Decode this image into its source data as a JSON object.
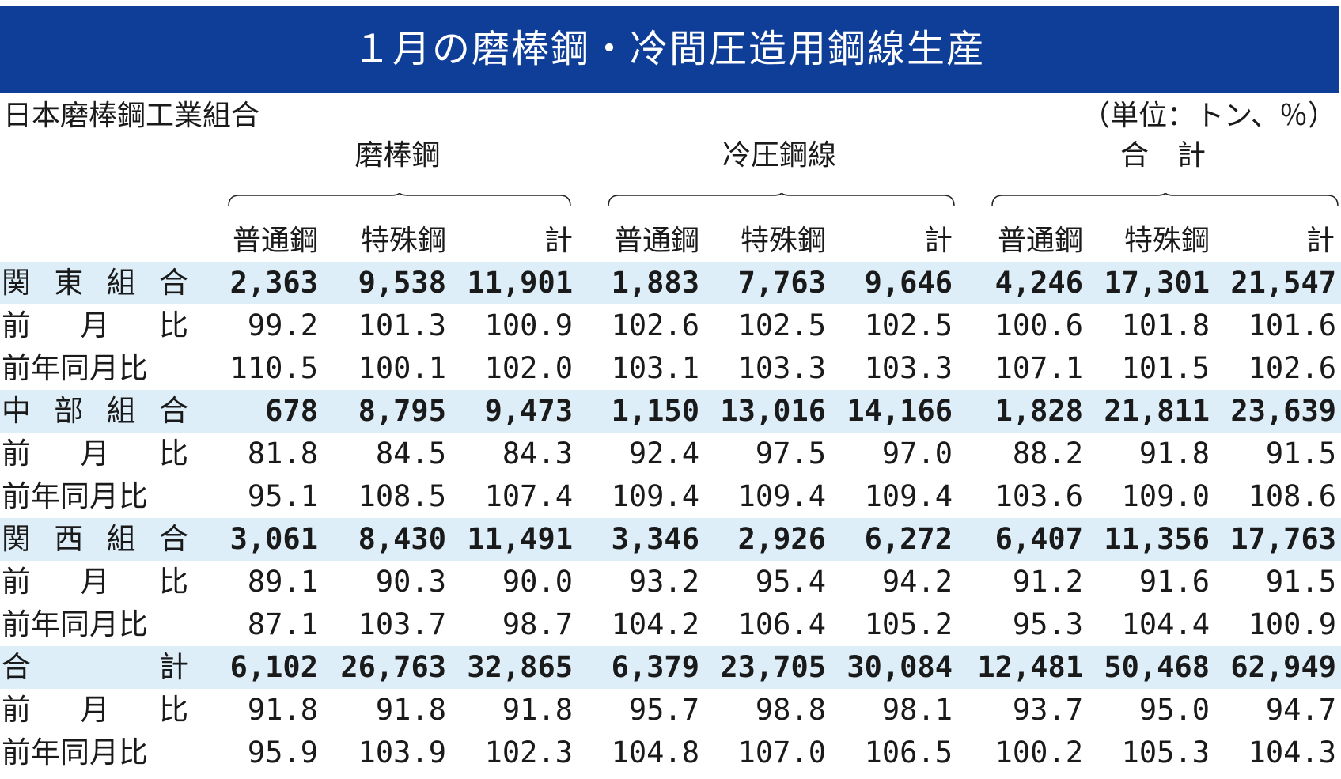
{
  "title": "１月の磨棒鋼・冷間圧造用鋼線生産",
  "source": "日本磨棒鋼工業組合",
  "unit": "（単位：トン、％）",
  "groups": [
    {
      "label": "磨棒鋼"
    },
    {
      "label": "冷圧鋼線"
    },
    {
      "label": "合　計"
    }
  ],
  "subheaders": [
    "普通鋼",
    "特殊鋼",
    "計",
    "普通鋼",
    "特殊鋼",
    "計",
    "普通鋼",
    "特殊鋼",
    "計"
  ],
  "rows": [
    {
      "label": "関東組合",
      "cells": [
        "2,363",
        "9,538",
        "11,901",
        "1,883",
        "7,763",
        "9,646",
        "4,246",
        "17,301",
        "21,547"
      ]
    },
    {
      "label": "前月比",
      "cells": [
        "99.2",
        "101.3",
        "100.9",
        "102.6",
        "102.5",
        "102.5",
        "100.6",
        "101.8",
        "101.6"
      ]
    },
    {
      "label": "前年同月比",
      "cells": [
        "110.5",
        "100.1",
        "102.0",
        "103.1",
        "103.3",
        "103.3",
        "107.1",
        "101.5",
        "102.6"
      ]
    },
    {
      "label": "中部組合",
      "cells": [
        "678",
        "8,795",
        "9,473",
        "1,150",
        "13,016",
        "14,166",
        "1,828",
        "21,811",
        "23,639"
      ]
    },
    {
      "label": "前月比",
      "cells": [
        "81.8",
        "84.5",
        "84.3",
        "92.4",
        "97.5",
        "97.0",
        "88.2",
        "91.8",
        "91.5"
      ]
    },
    {
      "label": "前年同月比",
      "cells": [
        "95.1",
        "108.5",
        "107.4",
        "109.4",
        "109.4",
        "109.4",
        "103.6",
        "109.0",
        "108.6"
      ]
    },
    {
      "label": "関西組合",
      "cells": [
        "3,061",
        "8,430",
        "11,491",
        "3,346",
        "2,926",
        "6,272",
        "6,407",
        "11,356",
        "17,763"
      ]
    },
    {
      "label": "前月比",
      "cells": [
        "89.1",
        "90.3",
        "90.0",
        "93.2",
        "95.4",
        "94.2",
        "91.2",
        "91.6",
        "91.5"
      ]
    },
    {
      "label": "前年同月比",
      "cells": [
        "87.1",
        "103.7",
        "98.7",
        "104.2",
        "106.4",
        "105.2",
        "95.3",
        "104.4",
        "100.9"
      ]
    },
    {
      "label": "合計",
      "cells": [
        "6,102",
        "26,763",
        "32,865",
        "6,379",
        "23,705",
        "30,084",
        "12,481",
        "50,468",
        "62,949"
      ]
    },
    {
      "label": "前月比",
      "cells": [
        "91.8",
        "91.8",
        "91.8",
        "95.7",
        "98.8",
        "98.1",
        "93.7",
        "95.0",
        "94.7"
      ]
    },
    {
      "label": "前年同月比",
      "cells": [
        "95.9",
        "103.9",
        "102.3",
        "104.8",
        "107.0",
        "106.5",
        "100.2",
        "105.3",
        "104.3"
      ]
    }
  ],
  "colors": {
    "title_bg": "#0f3e99",
    "band": "#ddeef8"
  },
  "chart_data": {
    "type": "table",
    "title": "１月の磨棒鋼・冷間圧造用鋼線生産",
    "source": "日本磨棒鋼工業組合",
    "unit": "（単位：トン、％）",
    "column_groups": [
      "磨棒鋼",
      "冷圧鋼線",
      "合　計"
    ],
    "columns": [
      "普通鋼",
      "特殊鋼",
      "計"
    ],
    "row_labels": [
      "関東組合",
      "前月比",
      "前年同月比",
      "中部組合",
      "前月比",
      "前年同月比",
      "関西組合",
      "前月比",
      "前年同月比",
      "合計",
      "前月比",
      "前年同月比"
    ]
  }
}
